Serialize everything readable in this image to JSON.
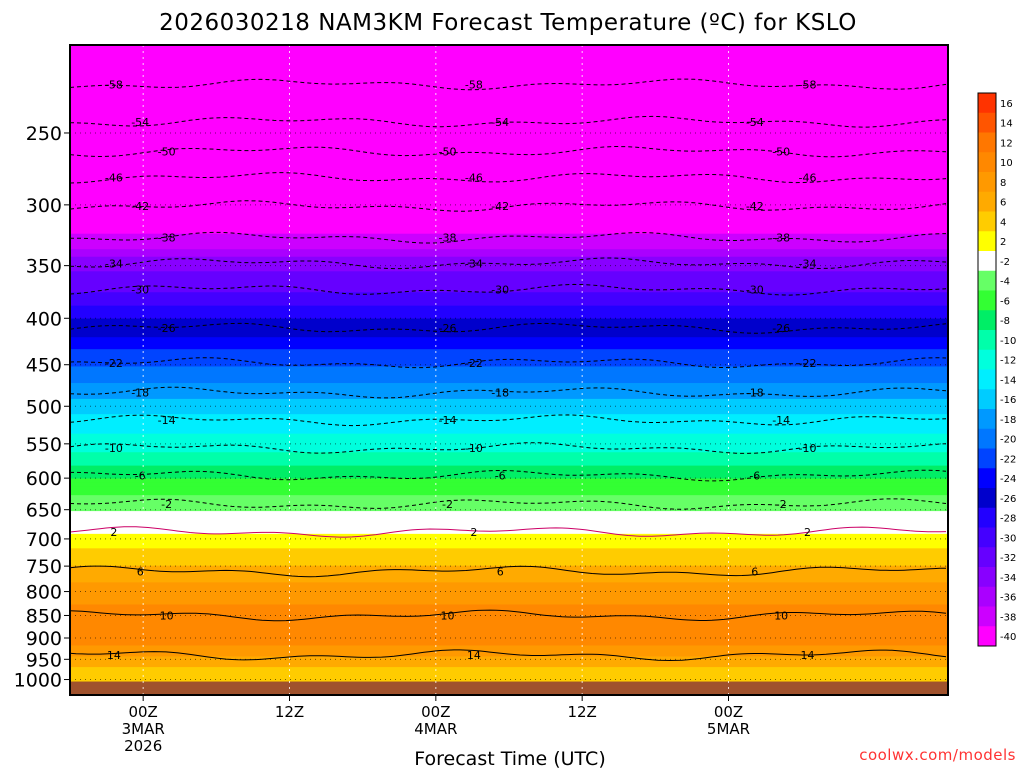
{
  "chart_data": {
    "type": "heatmap",
    "title": "2026030218 NAM3KM Forecast Temperature (ºC) for KSLO",
    "xlabel": "Forecast Time (UTC)",
    "ylabel": "",
    "credit": "coolwx.com/models",
    "x_range_hours": [
      -6,
      66
    ],
    "x_ticks": [
      {
        "hour": 0,
        "lines": [
          "00Z",
          "3MAR",
          "2026"
        ]
      },
      {
        "hour": 12,
        "lines": [
          "12Z"
        ]
      },
      {
        "hour": 24,
        "lines": [
          "00Z",
          "4MAR"
        ]
      },
      {
        "hour": 36,
        "lines": [
          "12Z"
        ]
      },
      {
        "hour": 48,
        "lines": [
          "00Z",
          "5MAR"
        ]
      }
    ],
    "y_scale": "log",
    "y_inverted": true,
    "y_range_hpa": [
      200,
      1040
    ],
    "y_ticks": [
      250,
      300,
      350,
      400,
      450,
      500,
      550,
      600,
      650,
      700,
      750,
      800,
      850,
      900,
      950,
      1000
    ],
    "grid": true,
    "legend_position": "right",
    "colorbar": {
      "labels": [
        16,
        14,
        12,
        10,
        8,
        6,
        4,
        2,
        -2,
        -4,
        -6,
        -8,
        -10,
        -12,
        -14,
        -16,
        -18,
        -20,
        -22,
        -24,
        -26,
        -28,
        -30,
        -32,
        -34,
        -36,
        -38,
        -40
      ],
      "colors": [
        "#ff3300",
        "#ff5500",
        "#ff7700",
        "#ff8800",
        "#ff9900",
        "#ffaa00",
        "#ffcc00",
        "#ffff00",
        "#ffffff",
        "#66ff66",
        "#33ff33",
        "#00ee66",
        "#00ffaa",
        "#00ffdd",
        "#00eeff",
        "#00ccff",
        "#0099ff",
        "#0077ff",
        "#0044ff",
        "#0000ff",
        "#0000cc",
        "#2200ff",
        "#4400ff",
        "#6600ff",
        "#8800ff",
        "#aa00ff",
        "#cc00ff",
        "#ff00ff"
      ]
    },
    "profile_levels_hpa": [
      1000,
      950,
      900,
      850,
      800,
      750,
      700,
      650,
      600,
      550,
      500,
      450,
      400,
      350,
      300,
      250,
      200
    ],
    "profile_temps_c": [
      4,
      7,
      12,
      11,
      9,
      6,
      3,
      -2,
      -6,
      -11,
      -15,
      -20,
      -26,
      -33,
      -42,
      -52,
      -58
    ],
    "contours": [
      {
        "label": "-58",
        "p": 221
      },
      {
        "label": "-54",
        "p": 243
      },
      {
        "label": "-50",
        "p": 262
      },
      {
        "label": "-46",
        "p": 280
      },
      {
        "label": "-42",
        "p": 301
      },
      {
        "label": "-38",
        "p": 326
      },
      {
        "label": "-34",
        "p": 348
      },
      {
        "label": "-30",
        "p": 372
      },
      {
        "label": "-26",
        "p": 410
      },
      {
        "label": "-22",
        "p": 448
      },
      {
        "label": "-18",
        "p": 483
      },
      {
        "label": "-14",
        "p": 518
      },
      {
        "label": "-10",
        "p": 556
      },
      {
        "label": "-6",
        "p": 596
      },
      {
        "label": "-2",
        "p": 641
      },
      {
        "label": "2",
        "p": 688
      },
      {
        "label": "6",
        "p": 760
      },
      {
        "label": "10",
        "p": 850
      },
      {
        "label": "14",
        "p": 940
      }
    ]
  }
}
